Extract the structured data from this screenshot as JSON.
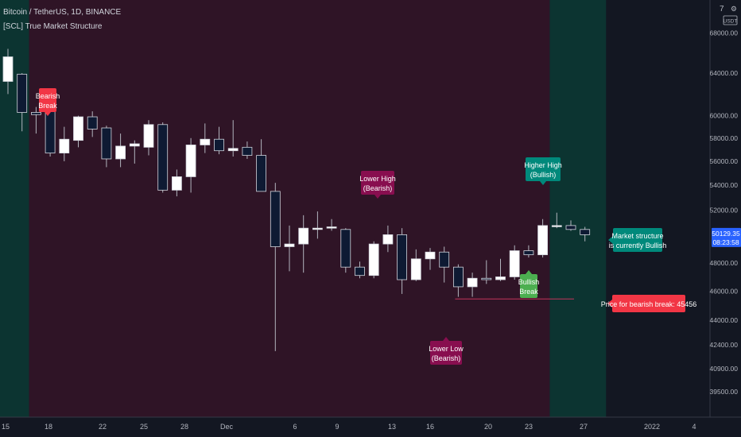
{
  "header": {
    "symbol_line": "Bitcoin / TetherUS, 1D, BINANCE",
    "indicator_line": "[SCL] True Market Structure"
  },
  "price_axis": {
    "currency_badge": "USDT",
    "top_label": "7",
    "gear_icon": "settings-icon"
  },
  "colors": {
    "background": "#131722",
    "bearish_zone": "#2f1426",
    "bullish_zone": "#0c3431",
    "candle_up": "#ffffff",
    "candle_down": "#0e1a33",
    "wick": "#b2b5be",
    "axis_text": "#b2b5be",
    "bearish_label": "#f23645",
    "bearish_dark_label": "#880e4f",
    "bullish_label": "#00897b",
    "bullish_light_label": "#4caf50",
    "current_price_badge": "#2962ff"
  },
  "chart_data": {
    "type": "candlestick",
    "ylim": [
      38000,
      71500
    ],
    "log_scale": true,
    "y_ticks": [
      "68000.00",
      "64000.00",
      "60000.00",
      "58000.00",
      "56000.00",
      "54000.00",
      "52000.00",
      "48000.00",
      "46000.00",
      "44000.00",
      "42400.00",
      "40900.00",
      "39500.00"
    ],
    "x_ticks": [
      "15",
      "18",
      "22",
      "25",
      "28",
      "Dec",
      "6",
      "9",
      "13",
      "16",
      "20",
      "23",
      "27",
      "2022",
      "4"
    ],
    "candles": [
      {
        "o": 63200,
        "h": 66400,
        "l": 62000,
        "c": 65600
      },
      {
        "o": 63900,
        "h": 64000,
        "l": 58600,
        "c": 60300
      },
      {
        "o": 60300,
        "h": 60800,
        "l": 58400,
        "c": 60100
      },
      {
        "o": 60500,
        "h": 60600,
        "l": 56400,
        "c": 56700
      },
      {
        "o": 56700,
        "h": 59000,
        "l": 56000,
        "c": 57900
      },
      {
        "o": 57800,
        "h": 60000,
        "l": 57200,
        "c": 59900
      },
      {
        "o": 59900,
        "h": 60400,
        "l": 58100,
        "c": 58800
      },
      {
        "o": 58900,
        "h": 59100,
        "l": 55500,
        "c": 56200
      },
      {
        "o": 56200,
        "h": 58400,
        "l": 55500,
        "c": 57300
      },
      {
        "o": 57300,
        "h": 57800,
        "l": 55800,
        "c": 57500
      },
      {
        "o": 57200,
        "h": 59600,
        "l": 56500,
        "c": 59200
      },
      {
        "o": 59200,
        "h": 59400,
        "l": 53400,
        "c": 53600
      },
      {
        "o": 53600,
        "h": 55300,
        "l": 53100,
        "c": 54700
      },
      {
        "o": 54700,
        "h": 58000,
        "l": 53400,
        "c": 57400
      },
      {
        "o": 57400,
        "h": 59300,
        "l": 56700,
        "c": 57900
      },
      {
        "o": 57900,
        "h": 59000,
        "l": 56600,
        "c": 56900
      },
      {
        "o": 56900,
        "h": 59600,
        "l": 56400,
        "c": 57100
      },
      {
        "o": 57200,
        "h": 57700,
        "l": 56200,
        "c": 56500
      },
      {
        "o": 56500,
        "h": 57900,
        "l": 53600,
        "c": 53500
      },
      {
        "o": 53500,
        "h": 54200,
        "l": 42000,
        "c": 49200
      },
      {
        "o": 49200,
        "h": 50800,
        "l": 47400,
        "c": 49400
      },
      {
        "o": 49400,
        "h": 51600,
        "l": 47300,
        "c": 50600
      },
      {
        "o": 50500,
        "h": 51900,
        "l": 49800,
        "c": 50600
      },
      {
        "o": 50600,
        "h": 51300,
        "l": 50400,
        "c": 50700
      },
      {
        "o": 50500,
        "h": 50600,
        "l": 47300,
        "c": 47700
      },
      {
        "o": 47700,
        "h": 48100,
        "l": 46900,
        "c": 47100
      },
      {
        "o": 47100,
        "h": 49600,
        "l": 46900,
        "c": 49400
      },
      {
        "o": 49400,
        "h": 50800,
        "l": 48800,
        "c": 50100
      },
      {
        "o": 50100,
        "h": 50600,
        "l": 45800,
        "c": 46800
      },
      {
        "o": 46800,
        "h": 49000,
        "l": 46700,
        "c": 48300
      },
      {
        "o": 48300,
        "h": 49100,
        "l": 47500,
        "c": 48800
      },
      {
        "o": 48800,
        "h": 49200,
        "l": 46600,
        "c": 47700
      },
      {
        "o": 47700,
        "h": 47900,
        "l": 45600,
        "c": 46300
      },
      {
        "o": 46300,
        "h": 47300,
        "l": 45600,
        "c": 46900
      },
      {
        "o": 46900,
        "h": 48200,
        "l": 46500,
        "c": 46800
      },
      {
        "o": 46800,
        "h": 48300,
        "l": 46700,
        "c": 47000
      },
      {
        "o": 47000,
        "h": 49300,
        "l": 46800,
        "c": 48900
      },
      {
        "o": 48900,
        "h": 49300,
        "l": 48400,
        "c": 48600
      },
      {
        "o": 48600,
        "h": 51300,
        "l": 48400,
        "c": 50800
      },
      {
        "o": 50800,
        "h": 51800,
        "l": 50600,
        "c": 50800
      },
      {
        "o": 50800,
        "h": 51200,
        "l": 50400,
        "c": 50500
      },
      {
        "o": 50500,
        "h": 50700,
        "l": 49600,
        "c": 50100
      }
    ],
    "zones": [
      {
        "type": "bullish",
        "from": 0,
        "to": 2
      },
      {
        "type": "bearish",
        "from": 2,
        "to": 39
      },
      {
        "type": "bullish",
        "from": 39,
        "to": 43
      }
    ],
    "annotations": [
      {
        "text": [
          "Bearish",
          "Break"
        ],
        "kind": "bearish_break",
        "candle": 3
      },
      {
        "text": [
          "Lower High",
          "(Bearish)"
        ],
        "kind": "lower_high",
        "candle": 27
      },
      {
        "text": [
          "Lower Low",
          "(Bearish)"
        ],
        "kind": "lower_low",
        "candle": 32
      },
      {
        "text": [
          "Bullish",
          "Break"
        ],
        "kind": "bullish_break",
        "candle": 38
      },
      {
        "text": [
          "Higher High",
          "(Bullish)"
        ],
        "kind": "higher_high",
        "candle": 39
      }
    ],
    "side_labels": {
      "market_structure": [
        "Market structure",
        "is currently Bullish"
      ],
      "bearish_break_price": "Price for bearish break: 45456"
    },
    "bearish_break_level": 45456,
    "current_price": {
      "value": "50129.35",
      "time": "08:23:58"
    }
  }
}
